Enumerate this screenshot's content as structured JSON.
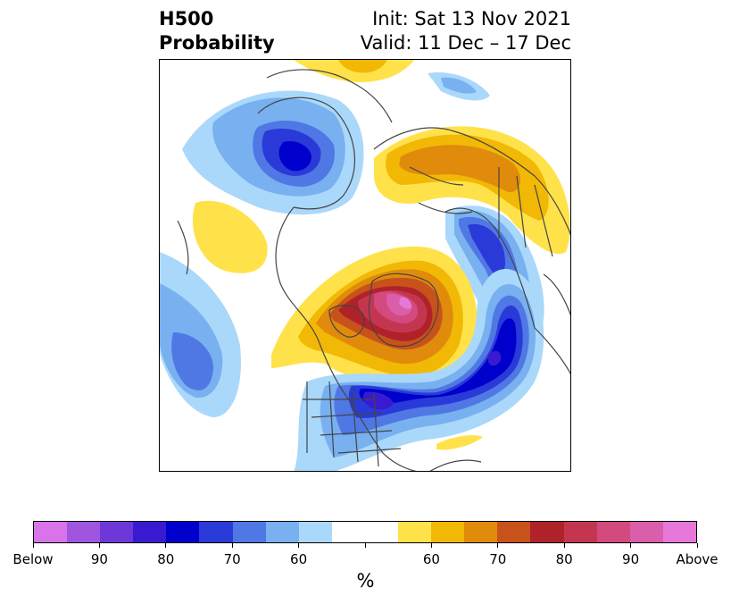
{
  "title": {
    "left_line1": "H500",
    "left_line2": "Probability",
    "right_line1": "Init: Sat 13 Nov 2021",
    "right_line2": "Valid: 11 Dec – 17 Dec"
  },
  "colorbar": {
    "units": "%",
    "colors": [
      "#d874e8",
      "#a055e0",
      "#6e38d8",
      "#3a1ad0",
      "#0000cc",
      "#2a3ad8",
      "#5078e4",
      "#78b0f0",
      "#aad8fa",
      "#ffffff",
      "#ffffff",
      "#ffe24a",
      "#f2b806",
      "#e08b0c",
      "#c8531a",
      "#b0222a",
      "#c43650",
      "#d24a7e",
      "#da5eaa",
      "#e678da"
    ],
    "tick_labels": [
      {
        "label": "Below",
        "index": 0
      },
      {
        "label": "90",
        "index": 2
      },
      {
        "label": "80",
        "index": 4
      },
      {
        "label": "70",
        "index": 6
      },
      {
        "label": "60",
        "index": 8
      },
      {
        "label": "",
        "index": 10
      },
      {
        "label": "60",
        "index": 12
      },
      {
        "label": "70",
        "index": 14
      },
      {
        "label": "80",
        "index": 16
      },
      {
        "label": "90",
        "index": 18
      },
      {
        "label": "Above",
        "index": 20
      }
    ]
  },
  "map": {
    "projection": "north-polar-stereographic",
    "region": "North America / North Atlantic / Greenland",
    "anomalies": [
      {
        "name": "greenland-positive-anomaly",
        "sign": "above",
        "max_category": "Above"
      },
      {
        "name": "eastern-us-atlantic-negative-anomaly",
        "sign": "below",
        "max_category": "Below"
      },
      {
        "name": "alaska-negative-anomaly",
        "sign": "below",
        "max_category": "80"
      },
      {
        "name": "eurasia-positive-anomaly",
        "sign": "above",
        "max_category": "70"
      },
      {
        "name": "scandinavia-negative-anomaly",
        "sign": "below",
        "max_category": "80"
      },
      {
        "name": "pacific-negative-anomaly",
        "sign": "below",
        "max_category": "70"
      },
      {
        "name": "pacific-positive-anomaly",
        "sign": "above",
        "max_category": "60"
      }
    ]
  }
}
